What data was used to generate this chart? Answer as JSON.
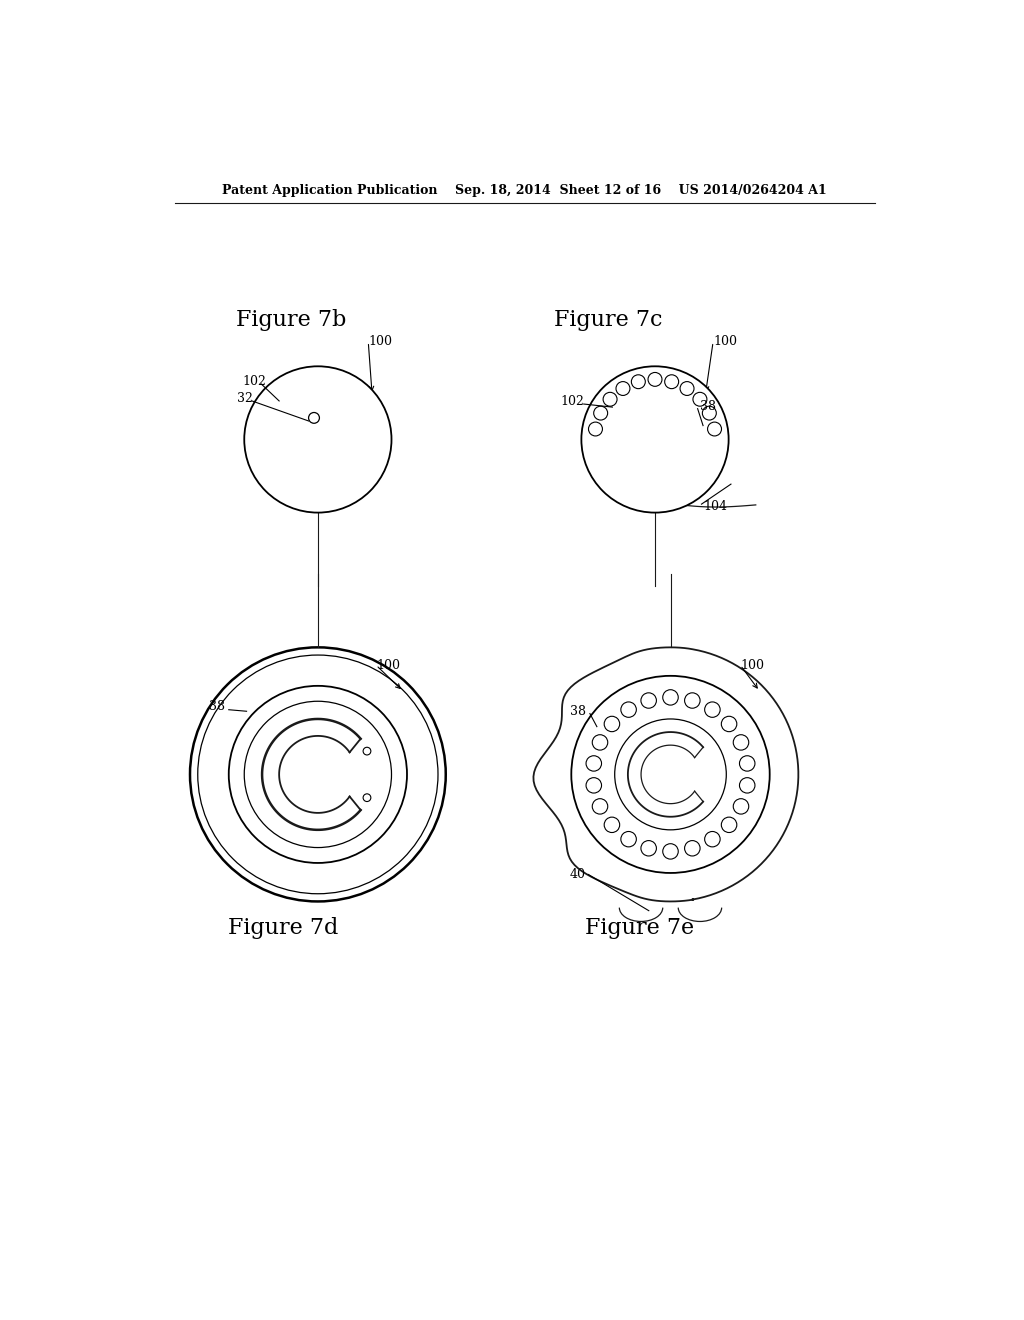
{
  "bg_color": "#ffffff",
  "line_color": "#1a1a1a",
  "header_text": "Patent Application Publication    Sep. 18, 2014  Sheet 12 of 16    US 2014/0264204 A1",
  "fig7b_title": "Figure 7b",
  "fig7c_title": "Figure 7c",
  "fig7d_title": "Figure 7d",
  "fig7e_title": "Figure 7e"
}
